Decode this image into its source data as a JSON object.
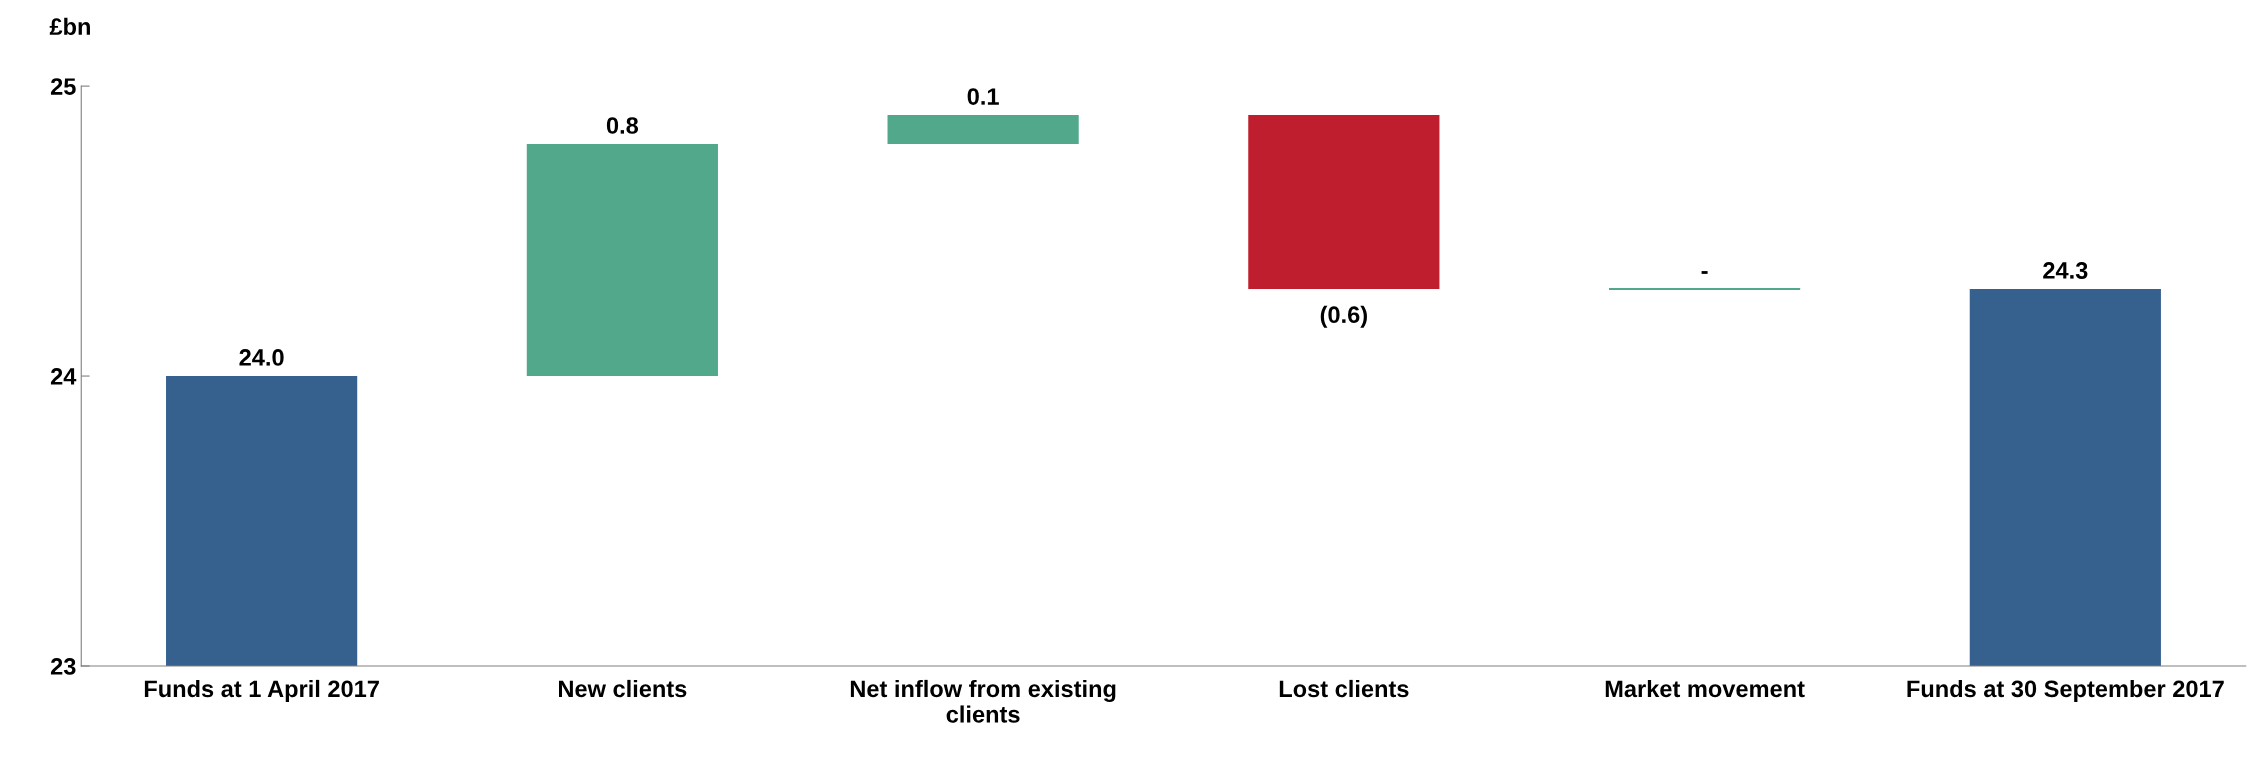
{
  "chart_data": {
    "type": "bar",
    "ylabel": "£bn",
    "categories": [
      "Funds at 1 April 2017",
      "New clients",
      "Net inflow from existing clients",
      "Lost clients",
      "Market movement",
      "Funds at 30 September 2017"
    ],
    "values": [
      24.0,
      0.8,
      0.1,
      -0.6,
      0,
      24.3
    ],
    "base": [
      null,
      24.0,
      24.8,
      24.9,
      24.3,
      null
    ],
    "colors": [
      "#36618f",
      "#52a88a",
      "#52a88a",
      "#be1e2d",
      "#52a88a",
      "#36618f"
    ],
    "value_labels": [
      "24.0",
      "0.8",
      "0.1",
      "(0.6)",
      "-",
      "24.3"
    ],
    "ylim": [
      23,
      25
    ],
    "yticks": [
      23,
      24,
      25
    ],
    "grid": false
  }
}
